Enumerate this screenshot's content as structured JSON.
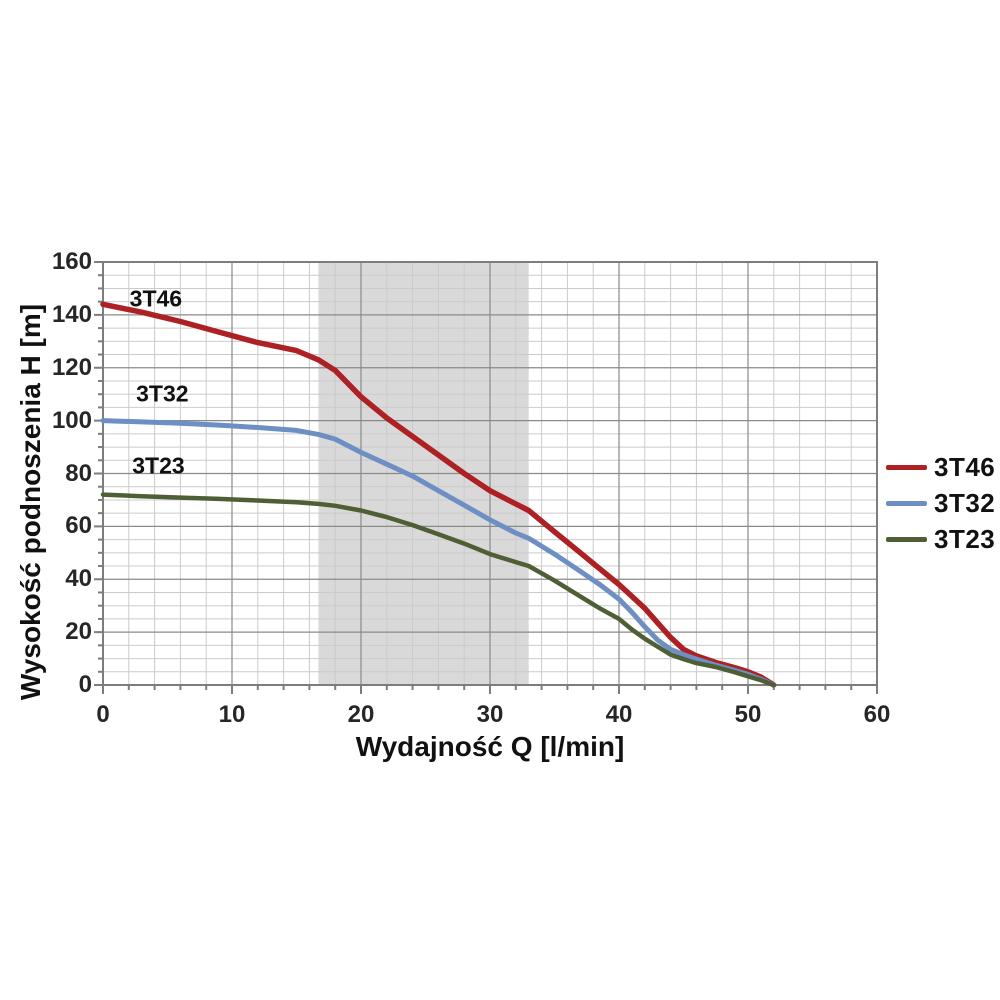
{
  "colors": {
    "background": "#ffffff",
    "grid_minor": "#cbcbcb",
    "grid_major": "#8a8a8a",
    "axis_border": "#7d7d7d",
    "text": "#262626",
    "band": "#d9d9d9"
  },
  "chart_data": {
    "type": "line",
    "title": "",
    "xlabel": "Wydajność Q [l/min]",
    "ylabel": "Wysokość podnoszenia H [m]",
    "xlim": [
      0,
      60
    ],
    "ylim": [
      0,
      160
    ],
    "x_major_ticks": [
      0,
      10,
      20,
      30,
      40,
      50,
      60
    ],
    "x_minor_step": 2,
    "y_major_ticks": [
      0,
      20,
      40,
      60,
      80,
      100,
      120,
      140,
      160
    ],
    "y_minor_step": 5,
    "grid": true,
    "recommended_band": {
      "x_from": 16.7,
      "x_to": 33.0,
      "color": "#d9d9d9"
    },
    "legend": {
      "position": "right",
      "entries": [
        "3T46",
        "3T32",
        "3T23"
      ]
    },
    "series": [
      {
        "name": "3T46",
        "color": "#ad2024",
        "points": [
          [
            0,
            144
          ],
          [
            3,
            141
          ],
          [
            6,
            137.5
          ],
          [
            9,
            133.5
          ],
          [
            12,
            129.5
          ],
          [
            15,
            126.5
          ],
          [
            16.7,
            123
          ],
          [
            18,
            119
          ],
          [
            20,
            109
          ],
          [
            22,
            101
          ],
          [
            24,
            94
          ],
          [
            26,
            87
          ],
          [
            28,
            80
          ],
          [
            30,
            73.5
          ],
          [
            32,
            68.5
          ],
          [
            33,
            66
          ],
          [
            35,
            58
          ],
          [
            37,
            50
          ],
          [
            38.5,
            44
          ],
          [
            40,
            38
          ],
          [
            41,
            33.5
          ],
          [
            42,
            29
          ],
          [
            43,
            23.5
          ],
          [
            44,
            18
          ],
          [
            45,
            13.5
          ],
          [
            46,
            11
          ],
          [
            47.5,
            8.5
          ],
          [
            49,
            6.5
          ],
          [
            50,
            5
          ],
          [
            51,
            3
          ],
          [
            52,
            0
          ]
        ]
      },
      {
        "name": "3T32",
        "color": "#6d8fc3",
        "points": [
          [
            0,
            100
          ],
          [
            3,
            99.5
          ],
          [
            6,
            99
          ],
          [
            9,
            98.3
          ],
          [
            12,
            97.4
          ],
          [
            15,
            96.3
          ],
          [
            16.7,
            94.8
          ],
          [
            18,
            93
          ],
          [
            20,
            88
          ],
          [
            22,
            83.5
          ],
          [
            24,
            79
          ],
          [
            26,
            73.5
          ],
          [
            28,
            68
          ],
          [
            30,
            62.5
          ],
          [
            32,
            57.5
          ],
          [
            33,
            55.5
          ],
          [
            35,
            49.5
          ],
          [
            37,
            43
          ],
          [
            38.5,
            38
          ],
          [
            40,
            32.5
          ],
          [
            41,
            27.5
          ],
          [
            42,
            22
          ],
          [
            43,
            17
          ],
          [
            44,
            13.5
          ],
          [
            45,
            11.5
          ],
          [
            46,
            9.8
          ],
          [
            47.5,
            7.5
          ],
          [
            49,
            5.5
          ],
          [
            50,
            4
          ],
          [
            51,
            2.2
          ],
          [
            52,
            0
          ]
        ]
      },
      {
        "name": "3T23",
        "color": "#4e5f35",
        "points": [
          [
            0,
            72
          ],
          [
            3,
            71.4
          ],
          [
            6,
            70.9
          ],
          [
            9,
            70.4
          ],
          [
            12,
            69.8
          ],
          [
            15,
            69.1
          ],
          [
            16.7,
            68.5
          ],
          [
            18,
            67.8
          ],
          [
            20,
            66
          ],
          [
            22,
            63.5
          ],
          [
            24,
            60.5
          ],
          [
            26,
            57
          ],
          [
            28,
            53.5
          ],
          [
            30,
            49.5
          ],
          [
            32,
            46.5
          ],
          [
            33,
            45
          ],
          [
            35,
            39.5
          ],
          [
            37,
            33.5
          ],
          [
            38.5,
            29
          ],
          [
            40,
            25
          ],
          [
            41,
            21
          ],
          [
            42,
            17.5
          ],
          [
            43,
            14.5
          ],
          [
            44,
            11.5
          ],
          [
            45,
            9.8
          ],
          [
            46,
            8.3
          ],
          [
            47.5,
            6.8
          ],
          [
            49,
            4.8
          ],
          [
            50,
            3.3
          ],
          [
            51,
            1.8
          ],
          [
            52,
            0
          ]
        ]
      }
    ],
    "series_inline_labels": [
      {
        "text": "3T46",
        "q": 4.1,
        "h": 146
      },
      {
        "text": "3T32",
        "q": 4.6,
        "h": 110
      },
      {
        "text": "3T23",
        "q": 4.3,
        "h": 83
      }
    ]
  }
}
